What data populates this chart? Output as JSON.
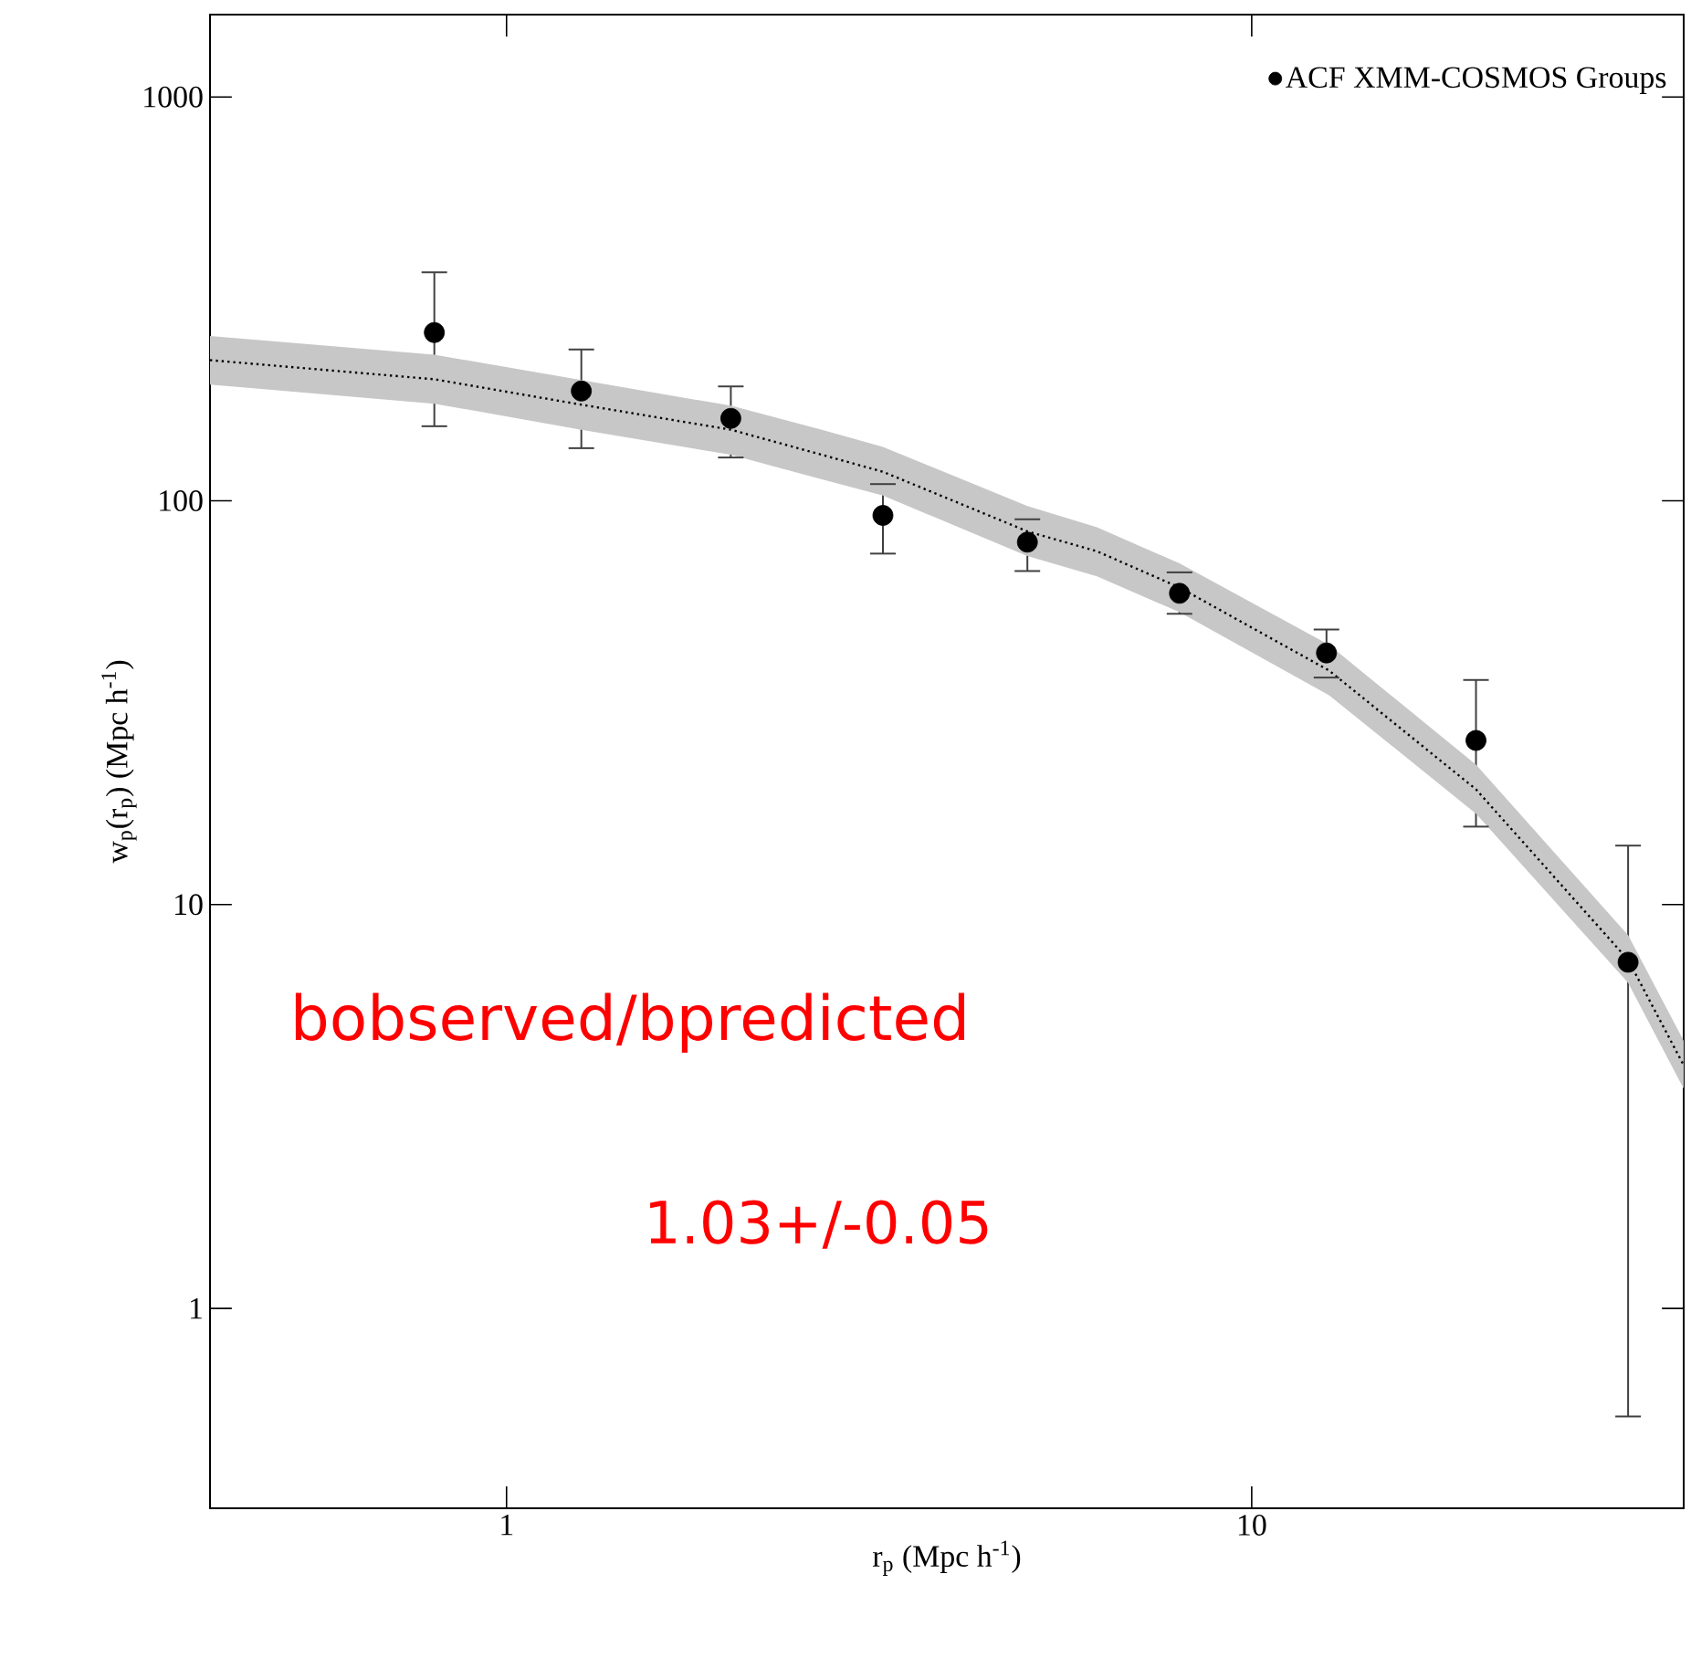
{
  "chart_data": {
    "type": "scatter",
    "xlabel": "r$_{p}$ (Mpc h$^{-1}$)",
    "ylabel": "w$_{p}$(r$_{p}$) (Mpc h$^{-1}$)",
    "log": "xy",
    "xlim": [
      0.4,
      38
    ],
    "ylim": [
      0.32,
      1600
    ],
    "xticks": [
      1,
      10
    ],
    "yticks": [
      1,
      10,
      100,
      1000
    ],
    "legend": "top right",
    "marker": "circle",
    "annotations": [
      "bobserved/bpredicted",
      "1.03+/-0.05"
    ],
    "series": [
      {
        "name": "ACF XMM-COSMOS Groups",
        "color": "#000000",
        "x": [
          0.8,
          1.26,
          2,
          3.2,
          5,
          8,
          12.6,
          20,
          32
        ],
        "values": [
          261,
          187,
          160,
          92,
          79,
          59,
          42,
          25.5,
          7.2
        ],
        "errors": [
          [
            153,
            368
          ],
          [
            135,
            237
          ],
          [
            128,
            192
          ],
          [
            74,
            110
          ],
          [
            67,
            90
          ],
          [
            52.5,
            66.5
          ],
          [
            36.5,
            48
          ],
          [
            15.6,
            36
          ],
          [
            0.54,
            14
          ]
        ]
      },
      {
        "type": "line",
        "color": "#000000",
        "line_style": "dotted",
        "marker": "none",
        "x": [
          0.4,
          0.8,
          1.26,
          2,
          2.65,
          3.2,
          5,
          6.2,
          8,
          12.7,
          20,
          32,
          38
        ],
        "values": [
          223,
          200,
          173,
          150,
          130,
          118,
          84,
          75,
          61,
          38,
          19.3,
          7.3,
          4.0
        ],
        "lower": [
          194,
          174,
          150,
          130,
          113,
          103,
          73,
          65,
          53,
          33,
          16.8,
          6.4,
          3.5
        ],
        "upper": [
          256,
          230,
          199,
          172,
          150,
          136,
          97,
          86,
          70,
          44,
          22.2,
          8.4,
          4.6
        ]
      }
    ]
  }
}
